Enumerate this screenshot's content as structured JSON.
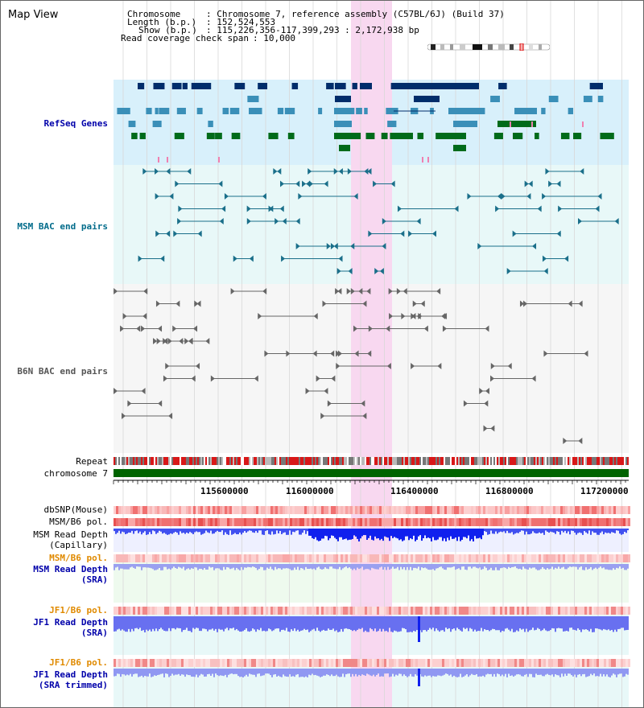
{
  "header": {
    "title": "Map View",
    "chromosome_key": "Chromosome",
    "chromosome_value": ": Chromosome 7, reference assembly (C57BL/6J) (Build 37)",
    "length_key": "Length (b.p.)",
    "length_value": ": 152,524,553",
    "show_key": "Show (b.p.)",
    "show_value": ": 115,226,356-117,399,293 : 2,172,938 bp",
    "coverage_key": "Read coverage check span",
    "coverage_value": ": 10,000"
  },
  "tracks": {
    "refseq": "RefSeq Genes",
    "msm_bac": "MSM BAC end pairs",
    "b6n_bac": "B6N BAC end pairs",
    "repeat": "Repeat",
    "chromosome": "chromosome 7",
    "dbsnp": "dbSNP(Mouse)",
    "msm_b6_pol": "MSM/B6 pol.",
    "msm_depth_cap_1": "MSM Read Depth",
    "msm_depth_cap_2": "(Capillary)",
    "msm_b6_pol_sra": "MSM/B6 pol.",
    "msm_depth_sra_1": "MSM Read Depth",
    "msm_depth_sra_2": "(SRA)",
    "jf1_b6_pol": "JF1/B6 pol.",
    "jf1_depth_sra_1": "JF1 Read Depth",
    "jf1_depth_sra_2": "(SRA)",
    "jf1_b6_pol_trim": "JF1/B6 pol.",
    "jf1_depth_trim_1": "JF1 Read Depth",
    "jf1_depth_trim_2": "(SRA trimmed)"
  },
  "axis": {
    "ticks": [
      "115600000",
      "116000000",
      "116400000",
      "116800000",
      "117200000"
    ]
  },
  "colors": {
    "refseq_label": "#0000aa",
    "msm_bac_label": "#006b8a",
    "b6n_label": "#555555",
    "orange_label": "#e08a00",
    "highlight": "#f8d8f0",
    "refseq_bg": "#d8f0fb",
    "msm_bg": "#e8f8f8",
    "gene_dark": "#002d6b",
    "gene_mid": "#3a8fb8",
    "gene_green": "#006b1a",
    "chromosome_bar": "#006400"
  }
}
